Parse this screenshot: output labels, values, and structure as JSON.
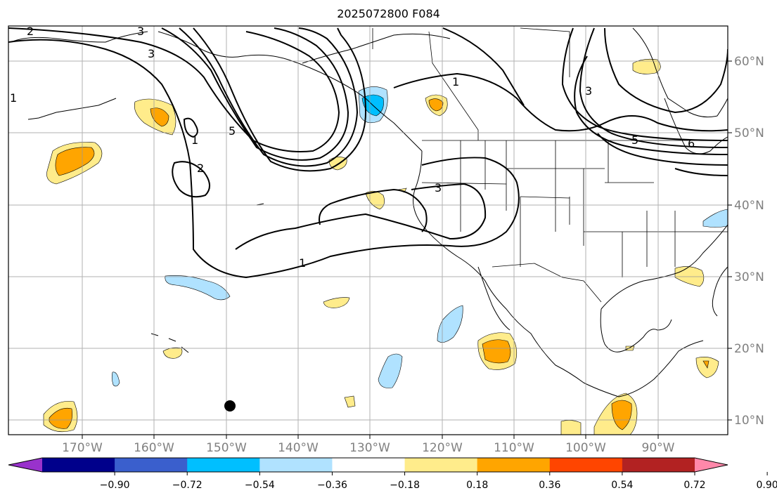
{
  "title": "2025072800 F084",
  "lon_labels": [
    "170°W",
    "160°W",
    "150°W",
    "140°W",
    "130°W",
    "120°W",
    "110°W",
    "100°W",
    "90°W"
  ],
  "lat_labels": [
    "60°N",
    "50°N",
    "40°N",
    "30°N",
    "20°N",
    "10°N"
  ],
  "contour_labels": [
    "2",
    "3",
    "1",
    "3",
    "5",
    "1",
    "2",
    "1",
    "3",
    "1",
    "3",
    "5",
    "6"
  ],
  "colorbar": {
    "ticks": [
      "−0.90",
      "−0.72",
      "−0.54",
      "−0.36",
      "−0.18",
      "0.18",
      "0.36",
      "0.54",
      "0.72",
      "0.90"
    ],
    "colors": [
      "#9932cc",
      "#00008b",
      "#3a5fcd",
      "#00bfff",
      "#b0e2ff",
      "#ffffff",
      "#ffec8b",
      "#ffa500",
      "#ff4500",
      "#b22222",
      "#ff88aa"
    ]
  },
  "colors": {
    "light_blue": "#b0e2ff",
    "blue": "#00bfff",
    "light_yellow": "#ffec8b",
    "orange": "#ffa500"
  },
  "marker": "black-dot"
}
